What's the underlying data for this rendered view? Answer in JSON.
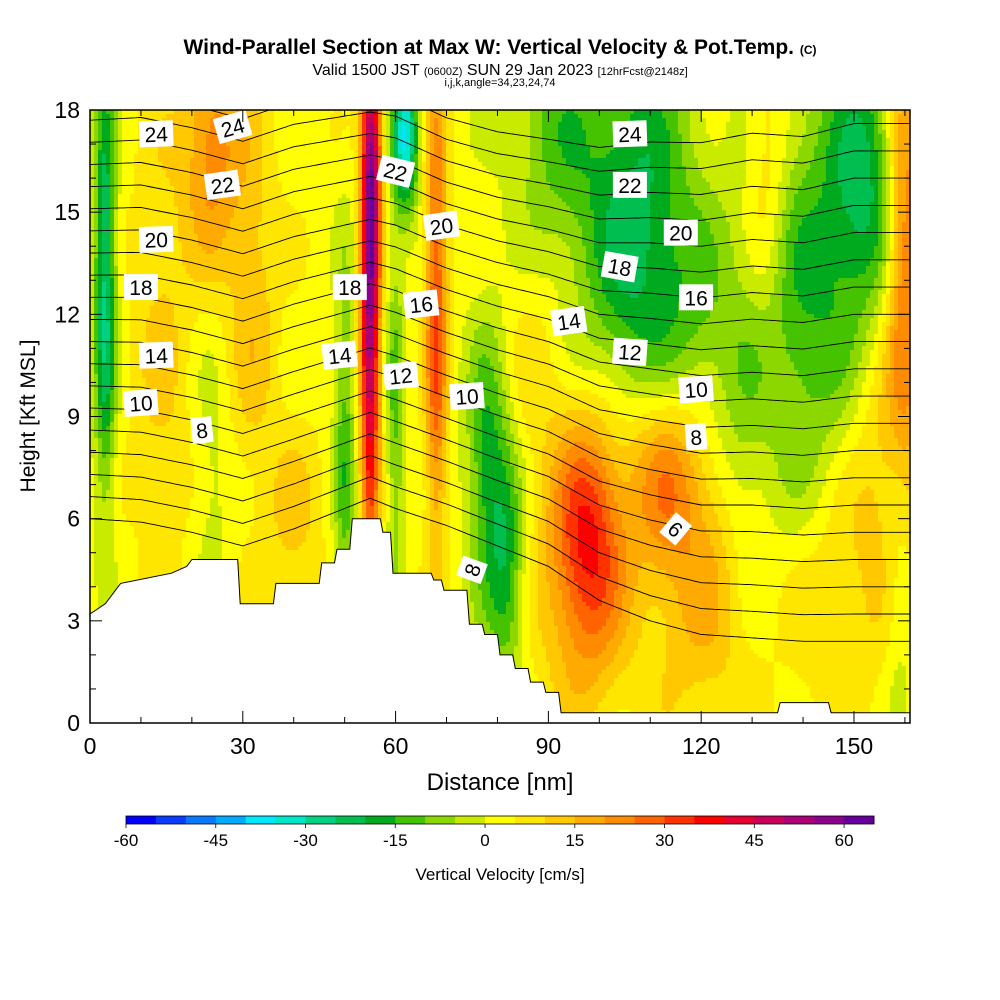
{
  "header": {
    "title": "Wind-Parallel Section at Max W: Vertical Velocity & Pot.Temp.",
    "title_suffix": "(C)",
    "subtitle_a": "Valid 1500 JST",
    "subtitle_b": "(0600Z)",
    "subtitle_c": "SUN 29 Jan 2023",
    "subtitle_d": "[12hrFcst@2148z]",
    "subtitle2": "i,j,k,angle=34,23,24,74"
  },
  "chart_data": {
    "type": "heatmap",
    "xlabel": "Distance [nm]",
    "ylabel": "Height [Kft MSL]",
    "xlim": [
      0,
      161
    ],
    "ylim": [
      0,
      18
    ],
    "x_ticks": [
      0,
      30,
      60,
      90,
      120,
      150
    ],
    "y_ticks": [
      0,
      3,
      6,
      9,
      12,
      15,
      18
    ],
    "colorbar": {
      "label": "Vertical Velocity [cm/s]",
      "min": -60,
      "max": 65,
      "step": 5,
      "tick_values": [
        -60,
        -45,
        -30,
        -15,
        0,
        15,
        30,
        45,
        60
      ],
      "tick_labels": [
        "-60",
        "-45",
        "-30",
        "-15",
        "0",
        "15",
        "30",
        "45",
        "60"
      ],
      "colors": [
        "#0000ff",
        "#0a3cff",
        "#0a78ff",
        "#00aaff",
        "#00e6ff",
        "#00e6c8",
        "#00d282",
        "#00be50",
        "#00aa1e",
        "#46c300",
        "#8cd700",
        "#c8eb00",
        "#ffff00",
        "#ffe600",
        "#ffc800",
        "#ffaa00",
        "#ff8c00",
        "#ff6400",
        "#ff3200",
        "#ff0000",
        "#e60032",
        "#c8005a",
        "#aa0078",
        "#8c008c",
        "#64009b"
      ]
    },
    "terrain": {
      "x": [
        0,
        3,
        6,
        16,
        19,
        20,
        29,
        29.5,
        36,
        36.5,
        45,
        45.5,
        48,
        48.5,
        51,
        51.5,
        57,
        57.5,
        59,
        59.5,
        67,
        67.5,
        69,
        69.5,
        74,
        74.5,
        77,
        77.5,
        80,
        80.5,
        83,
        83.5,
        86,
        86.5,
        89,
        89.5,
        92,
        92.5,
        135,
        135.5,
        145,
        145.5,
        161
      ],
      "y": [
        3.2,
        3.5,
        4.1,
        4.4,
        4.6,
        4.8,
        4.8,
        3.5,
        3.5,
        4.1,
        4.1,
        4.7,
        4.7,
        5.1,
        5.1,
        6.0,
        6.0,
        5.6,
        5.6,
        4.4,
        4.4,
        4.2,
        4.2,
        3.9,
        3.9,
        2.9,
        2.9,
        2.6,
        2.6,
        2.0,
        2.0,
        1.6,
        1.6,
        1.2,
        1.2,
        0.9,
        0.9,
        0.3,
        0.3,
        0.6,
        0.6,
        0.3,
        0.3
      ]
    },
    "updrafts": [
      {
        "x": 55,
        "y": 13,
        "sx": 1.3,
        "sy": 5.5,
        "w": 55
      },
      {
        "x": 56,
        "y": 16.5,
        "sx": 1.3,
        "sy": 2.0,
        "w": 15
      },
      {
        "x": 68,
        "y": 12,
        "sx": 1.5,
        "sy": 5.0,
        "w": 28
      },
      {
        "x": 24,
        "y": 17,
        "sx": 4.0,
        "sy": 2.5,
        "w": 20
      },
      {
        "x": 32,
        "y": 12.5,
        "sx": 3.5,
        "sy": 4.0,
        "w": 10
      },
      {
        "x": 14,
        "y": 11,
        "sx": 4.0,
        "sy": 5.0,
        "w": 8
      },
      {
        "x": 98,
        "y": 6.0,
        "sx": 5.0,
        "sy": 2.5,
        "w": 26
      },
      {
        "x": 113,
        "y": 7.5,
        "sx": 6.0,
        "sy": 2.0,
        "w": 22
      },
      {
        "x": 97,
        "y": 3.5,
        "sx": 6.0,
        "sy": 2.5,
        "w": 13
      },
      {
        "x": 120,
        "y": 4.0,
        "sx": 8.0,
        "sy": 3.0,
        "w": 13
      },
      {
        "x": 146,
        "y": 4.0,
        "sx": 7.0,
        "sy": 3.0,
        "w": 10
      },
      {
        "x": 160,
        "y": 14.0,
        "sx": 2.5,
        "sy": 5.0,
        "w": 25
      },
      {
        "x": 133,
        "y": 16.0,
        "sx": 3.0,
        "sy": 3.0,
        "w": 12
      },
      {
        "x": 155,
        "y": 8.0,
        "sx": 4.0,
        "sy": 3.0,
        "w": 8
      },
      {
        "x": 40,
        "y": 6.0,
        "sx": 4.0,
        "sy": 2.0,
        "w": 8
      },
      {
        "x": 88,
        "y": 12.0,
        "sx": 5.0,
        "sy": 4.0,
        "w": 6
      }
    ],
    "downdrafts": [
      {
        "x": 3,
        "y": 13,
        "sx": 1.5,
        "sy": 4.5,
        "w": -30
      },
      {
        "x": 62,
        "y": 17.2,
        "sx": 1.8,
        "sy": 1.5,
        "w": -38
      },
      {
        "x": 60,
        "y": 9,
        "sx": 1.3,
        "sy": 4.0,
        "w": -14
      },
      {
        "x": 50,
        "y": 8,
        "sx": 1.5,
        "sy": 4.0,
        "w": -16
      },
      {
        "x": 78,
        "y": 7.5,
        "sx": 3.0,
        "sy": 3.0,
        "w": -20
      },
      {
        "x": 82,
        "y": 4.5,
        "sx": 2.5,
        "sy": 2.5,
        "w": -18
      },
      {
        "x": 107,
        "y": 14.5,
        "sx": 8.0,
        "sy": 4.5,
        "w": -25
      },
      {
        "x": 90,
        "y": 17.0,
        "sx": 6.0,
        "sy": 3.0,
        "w": -15
      },
      {
        "x": 140,
        "y": 12.0,
        "sx": 8.0,
        "sy": 5.0,
        "w": -18
      },
      {
        "x": 152,
        "y": 16.0,
        "sx": 5.0,
        "sy": 3.0,
        "w": -22
      },
      {
        "x": 120,
        "y": 11.0,
        "sx": 6.0,
        "sy": 3.0,
        "w": -10
      },
      {
        "x": 128,
        "y": 7.0,
        "sx": 3.0,
        "sy": 3.0,
        "w": -6
      },
      {
        "x": 24,
        "y": 7.0,
        "sx": 2.5,
        "sy": 3.0,
        "w": -6
      },
      {
        "x": 159,
        "y": 4.0,
        "sx": 2.0,
        "sy": 3.0,
        "w": -8
      }
    ],
    "isentropes": {
      "levels": [
        6,
        7,
        8,
        9,
        10,
        11,
        12,
        13,
        14,
        15,
        16,
        17,
        18,
        19,
        20,
        21,
        22,
        23,
        24,
        25
      ],
      "x": [
        0,
        10,
        20,
        30,
        40,
        50,
        55,
        60,
        70,
        80,
        90,
        100,
        110,
        120,
        130,
        140,
        150,
        161
      ],
      "base_height": [
        6.0,
        5.9,
        5.6,
        5.2,
        5.7,
        6.3,
        6.6,
        6.3,
        5.8,
        5.2,
        4.6,
        3.6,
        3.0,
        2.6,
        2.5,
        2.4,
        2.4,
        2.4
      ],
      "spacing": [
        0.65,
        0.66,
        0.66,
        0.66,
        0.66,
        0.64,
        0.63,
        0.64,
        0.63,
        0.64,
        0.66,
        0.7,
        0.74,
        0.76,
        0.78,
        0.78,
        0.8,
        0.8
      ],
      "labels": [
        {
          "text": "24",
          "x": 13,
          "y": 17.3,
          "angle": -2
        },
        {
          "text": "24",
          "x": 28,
          "y": 17.5,
          "angle": -16
        },
        {
          "text": "22",
          "x": 26,
          "y": 15.8,
          "angle": -8
        },
        {
          "text": "20",
          "x": 13,
          "y": 14.2,
          "angle": -2
        },
        {
          "text": "18",
          "x": 10,
          "y": 12.8,
          "angle": 0
        },
        {
          "text": "14",
          "x": 13,
          "y": 10.8,
          "angle": -2
        },
        {
          "text": "10",
          "x": 10,
          "y": 9.4,
          "angle": -4
        },
        {
          "text": "8",
          "x": 22,
          "y": 8.6,
          "angle": -6
        },
        {
          "text": "22",
          "x": 60,
          "y": 16.2,
          "angle": 14
        },
        {
          "text": "20",
          "x": 69,
          "y": 14.6,
          "angle": -8
        },
        {
          "text": "18",
          "x": 51,
          "y": 12.8,
          "angle": 0
        },
        {
          "text": "16",
          "x": 65,
          "y": 12.3,
          "angle": -6
        },
        {
          "text": "14",
          "x": 49,
          "y": 10.8,
          "angle": -6
        },
        {
          "text": "12",
          "x": 61,
          "y": 10.2,
          "angle": -6
        },
        {
          "text": "10",
          "x": 74,
          "y": 9.6,
          "angle": -4
        },
        {
          "text": "8",
          "x": 75,
          "y": 4.5,
          "angle": -70
        },
        {
          "text": "24",
          "x": 106,
          "y": 17.3,
          "angle": -2
        },
        {
          "text": "22",
          "x": 106,
          "y": 15.8,
          "angle": 0
        },
        {
          "text": "20",
          "x": 116,
          "y": 14.4,
          "angle": 0
        },
        {
          "text": "18",
          "x": 104,
          "y": 13.4,
          "angle": 10
        },
        {
          "text": "16",
          "x": 119,
          "y": 12.5,
          "angle": 0
        },
        {
          "text": "14",
          "x": 94,
          "y": 11.8,
          "angle": -8
        },
        {
          "text": "12",
          "x": 106,
          "y": 10.9,
          "angle": 4
        },
        {
          "text": "10",
          "x": 119,
          "y": 9.8,
          "angle": -4
        },
        {
          "text": "8",
          "x": 119,
          "y": 8.4,
          "angle": -4
        },
        {
          "text": "6",
          "x": 115,
          "y": 5.7,
          "angle": 40
        }
      ]
    }
  }
}
